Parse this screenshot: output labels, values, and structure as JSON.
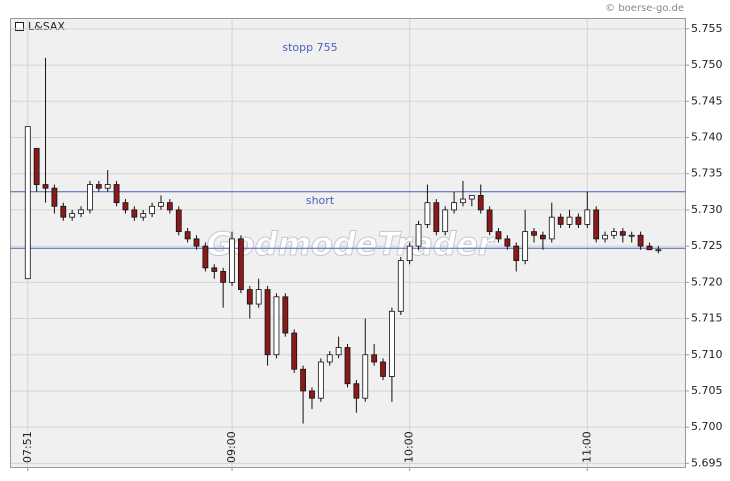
{
  "chart_data": {
    "type": "candlestick",
    "legend": "L&SAX",
    "source": "© boerse-go.de",
    "watermark": "GodmodeTrader",
    "annotations": [
      "stopp 755"
    ],
    "hlines": [
      {
        "value": 5.7325,
        "label": "short"
      },
      {
        "value": 5.7247
      }
    ],
    "line_color": "#4a5fc1",
    "up_color": "#ffffff",
    "down_color": "#8b1a1a",
    "grid": true,
    "xlim": [
      "07:45",
      "11:33"
    ],
    "xticks": [
      "07:51",
      "09:00",
      "10:00",
      "11:00"
    ],
    "ylim": [
      5.6945,
      5.7565
    ],
    "yticks": [
      5.695,
      {
        "value": 5.7,
        "label": "5.700"
      },
      5.705,
      {
        "value": 5.71,
        "label": "5.710"
      },
      5.715,
      {
        "value": 5.72,
        "label": "5.720"
      },
      5.725,
      {
        "value": 5.73,
        "label": "5.730"
      },
      5.735,
      {
        "value": 5.74,
        "label": "5.740"
      },
      5.745,
      {
        "value": 5.75,
        "label": "5.750"
      },
      5.755
    ],
    "x": [
      "07:51",
      "07:54",
      "07:57",
      "08:00",
      "08:03",
      "08:06",
      "08:09",
      "08:12",
      "08:15",
      "08:18",
      "08:21",
      "08:24",
      "08:27",
      "08:30",
      "08:33",
      "08:36",
      "08:39",
      "08:42",
      "08:45",
      "08:48",
      "08:51",
      "08:54",
      "08:57",
      "09:00",
      "09:03",
      "09:06",
      "09:09",
      "09:12",
      "09:15",
      "09:18",
      "09:21",
      "09:24",
      "09:27",
      "09:30",
      "09:33",
      "09:36",
      "09:39",
      "09:42",
      "09:45",
      "09:48",
      "09:51",
      "09:54",
      "09:57",
      "10:00",
      "10:03",
      "10:06",
      "10:09",
      "10:12",
      "10:15",
      "10:18",
      "10:21",
      "10:24",
      "10:27",
      "10:30",
      "10:33",
      "10:36",
      "10:39",
      "10:42",
      "10:45",
      "10:48",
      "10:51",
      "10:54",
      "10:57",
      "11:00",
      "11:03",
      "11:06",
      "11:09",
      "11:12",
      "11:15",
      "11:18",
      "11:21",
      "11:24"
    ],
    "open": [
      5.7205,
      5.7385,
      5.7335,
      5.733,
      5.7305,
      5.729,
      5.7295,
      5.73,
      5.7335,
      5.733,
      5.7335,
      5.731,
      5.73,
      5.729,
      5.7295,
      5.7305,
      5.731,
      5.73,
      5.727,
      5.726,
      5.725,
      5.722,
      5.7215,
      5.72,
      5.726,
      5.719,
      5.717,
      5.719,
      5.71,
      5.718,
      5.713,
      5.708,
      5.705,
      5.704,
      5.709,
      5.71,
      5.711,
      5.706,
      5.704,
      5.71,
      5.709,
      5.707,
      5.716,
      5.723,
      5.725,
      5.728,
      5.731,
      5.727,
      5.73,
      5.731,
      5.7315,
      5.732,
      5.73,
      5.727,
      5.726,
      5.725,
      5.723,
      5.727,
      5.7265,
      5.726,
      5.729,
      5.728,
      5.729,
      5.728,
      5.73,
      5.726,
      5.7265,
      5.727,
      5.7265,
      5.7265,
      5.725,
      5.7245
    ],
    "high": [
      5.7415,
      5.7385,
      5.751,
      5.7335,
      5.731,
      5.73,
      5.7305,
      5.734,
      5.734,
      5.7355,
      5.734,
      5.7315,
      5.7305,
      5.73,
      5.731,
      5.732,
      5.7315,
      5.7305,
      5.7275,
      5.7265,
      5.7255,
      5.7225,
      5.722,
      5.727,
      5.7265,
      5.7195,
      5.7205,
      5.7195,
      5.7185,
      5.7185,
      5.7135,
      5.7085,
      5.7055,
      5.7095,
      5.7105,
      5.7125,
      5.7115,
      5.7065,
      5.715,
      5.7115,
      5.7095,
      5.7165,
      5.7235,
      5.7255,
      5.7285,
      5.7335,
      5.7315,
      5.7305,
      5.7325,
      5.734,
      5.732,
      5.7335,
      5.7305,
      5.7275,
      5.7265,
      5.7255,
      5.73,
      5.7275,
      5.727,
      5.731,
      5.7295,
      5.73,
      5.7295,
      5.7325,
      5.7305,
      5.727,
      5.7275,
      5.7275,
      5.727,
      5.727,
      5.7255,
      5.725
    ],
    "low": [
      5.7205,
      5.7325,
      5.731,
      5.7295,
      5.7285,
      5.7285,
      5.729,
      5.7295,
      5.7325,
      5.7325,
      5.7305,
      5.7295,
      5.7285,
      5.7285,
      5.729,
      5.73,
      5.7295,
      5.7265,
      5.7255,
      5.7245,
      5.7215,
      5.7205,
      5.7165,
      5.7195,
      5.7185,
      5.715,
      5.7165,
      5.7085,
      5.7095,
      5.7125,
      5.7075,
      5.7005,
      5.7025,
      5.7035,
      5.7085,
      5.7095,
      5.7055,
      5.702,
      5.7035,
      5.7085,
      5.7065,
      5.7035,
      5.7155,
      5.7225,
      5.7245,
      5.7275,
      5.7265,
      5.7265,
      5.7295,
      5.7305,
      5.7305,
      5.7295,
      5.7265,
      5.7255,
      5.7245,
      5.7215,
      5.7225,
      5.7255,
      5.7245,
      5.7255,
      5.7275,
      5.7275,
      5.7275,
      5.7275,
      5.7255,
      5.7255,
      5.726,
      5.7255,
      5.7255,
      5.7245,
      5.7245,
      5.724
    ],
    "close": [
      5.7415,
      5.7335,
      5.733,
      5.7305,
      5.729,
      5.7295,
      5.73,
      5.7335,
      5.733,
      5.7335,
      5.731,
      5.73,
      5.729,
      5.7295,
      5.7305,
      5.731,
      5.73,
      5.727,
      5.726,
      5.725,
      5.722,
      5.7215,
      5.72,
      5.726,
      5.719,
      5.717,
      5.719,
      5.71,
      5.718,
      5.713,
      5.708,
      5.705,
      5.704,
      5.709,
      5.71,
      5.711,
      5.706,
      5.704,
      5.71,
      5.709,
      5.707,
      5.716,
      5.723,
      5.725,
      5.728,
      5.731,
      5.727,
      5.73,
      5.731,
      5.7315,
      5.732,
      5.73,
      5.727,
      5.726,
      5.725,
      5.723,
      5.727,
      5.7265,
      5.726,
      5.729,
      5.728,
      5.729,
      5.728,
      5.73,
      5.726,
      5.7265,
      5.727,
      5.7265,
      5.7265,
      5.725,
      5.7245,
      5.7245
    ]
  }
}
